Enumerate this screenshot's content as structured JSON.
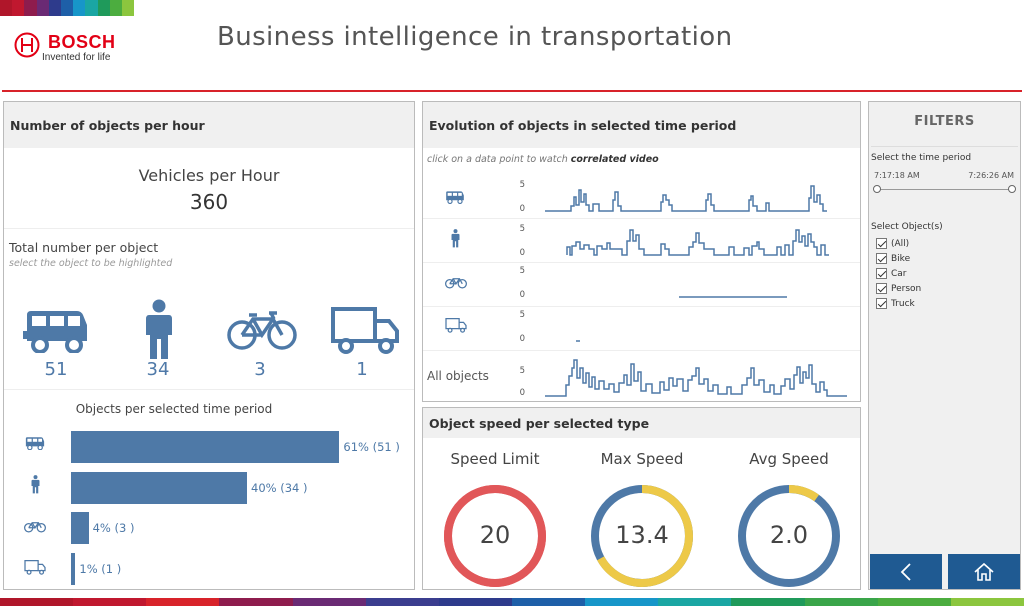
{
  "header": {
    "brand": "BOSCH",
    "tagline": "Invented for life",
    "title": "Business intelligence in transportation"
  },
  "colors": {
    "accent_red": "#d8232a",
    "bar_blue": "#4e79a7",
    "gauge_red": "#e15759",
    "gauge_yellow": "#edc948",
    "nav_blue": "#1f5a92"
  },
  "objects_per_hour": {
    "panel_title": "Number of objects per hour",
    "vehicles_label": "Vehicles per Hour",
    "vehicles_value": "360",
    "total_title": "Total number per object",
    "total_subtitle": "select the object to be highlighted",
    "objects": [
      {
        "icon": "car-icon",
        "count": "51"
      },
      {
        "icon": "person-icon",
        "count": "34"
      },
      {
        "icon": "bike-icon",
        "count": "3"
      },
      {
        "icon": "truck-icon",
        "count": "1"
      }
    ],
    "period_title": "Objects per selected time period",
    "bars": [
      {
        "icon": "car-icon",
        "percent": 61,
        "label": "61% (51 )"
      },
      {
        "icon": "person-icon",
        "percent": 40,
        "label": "40% (34 )"
      },
      {
        "icon": "bike-icon",
        "percent": 4,
        "label": "4% (3 )"
      },
      {
        "icon": "truck-icon",
        "percent": 1,
        "label": "1% (1 )"
      }
    ]
  },
  "evolution": {
    "panel_title": "Evolution of objects in selected time period",
    "hint_prefix": "click on a data point to watch ",
    "hint_bold": "correlated video",
    "rows": [
      {
        "icon": "car-icon",
        "ymax": "5",
        "ymin": "0"
      },
      {
        "icon": "person-icon",
        "ymax": "5",
        "ymin": "0"
      },
      {
        "icon": "bike-icon",
        "ymax": "5",
        "ymin": "0"
      },
      {
        "icon": "truck-icon",
        "ymax": "5",
        "ymin": "0"
      },
      {
        "label": "All objects",
        "ymax": "5",
        "ymin": "0"
      }
    ]
  },
  "speed": {
    "panel_title": "Object speed per selected type",
    "gauges": [
      {
        "title": "Speed Limit",
        "value": "20",
        "fraction": 1.0
      },
      {
        "title": "Max Speed",
        "value": "13.4",
        "fraction": 0.67
      },
      {
        "title": "Avg Speed",
        "value": "2.0",
        "fraction": 0.1
      }
    ]
  },
  "filters": {
    "title": "FILTERS",
    "time_label": "Select the time period",
    "time_start": "7:17:18 AM",
    "time_end": "7:26:26 AM",
    "objects_label": "Select Object(s)",
    "options": [
      "(All)",
      "Bike",
      "Car",
      "Person",
      "Truck"
    ],
    "back_label": "back",
    "home_label": "home"
  }
}
